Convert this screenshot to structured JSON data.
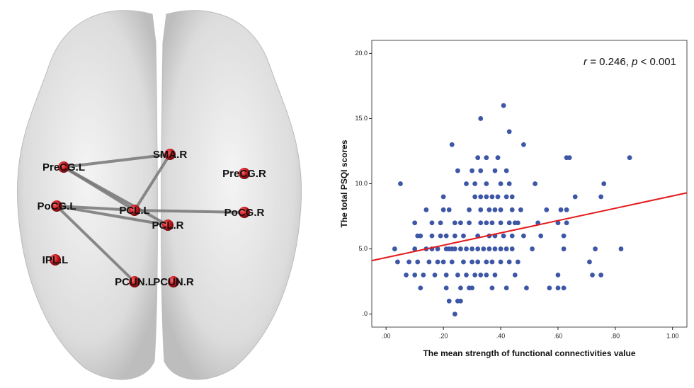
{
  "brain": {
    "nodes": [
      "PreCG.L",
      "SMA.R",
      "PreCG.R",
      "PoCG.L",
      "PCL.L",
      "PoCG.R",
      "PCL.R",
      "IPL.L",
      "PCUN.L",
      "PCUN.R"
    ]
  },
  "chart_data": {
    "type": "scatter",
    "annotation": [
      "r",
      " = 0.246, ",
      "p",
      " < 0.001"
    ],
    "x_label": "The mean strength of functional connectivities value",
    "y_label": "The total PSQI scores",
    "color": "#3d57a6",
    "xlim": [
      -0.05,
      1.05
    ],
    "ylim": [
      -1,
      21
    ],
    "xticks": [
      {
        "value": 0,
        "label": ".00"
      },
      {
        "value": 0.2,
        "label": ".20"
      },
      {
        "value": 0.4,
        "label": ".40"
      },
      {
        "value": 0.6,
        "label": ".60"
      },
      {
        "value": 0.8,
        "label": ".80"
      },
      {
        "value": 1,
        "label": "1.00"
      }
    ],
    "yticks": [
      {
        "value": 0,
        "label": ".0"
      },
      {
        "value": 5,
        "label": "5.0"
      },
      {
        "value": 10,
        "label": "10.0"
      },
      {
        "value": 15,
        "label": "15.0"
      },
      {
        "value": 20,
        "label": "20.0"
      }
    ],
    "fit_line": {
      "x": [
        -0.05,
        1.05
      ],
      "y": [
        4.1,
        9.3
      ],
      "color": "#e41a1c"
    },
    "x": [
      0.24,
      0.22,
      0.25,
      0.26,
      0.12,
      0.21,
      0.26,
      0.29,
      0.3,
      0.37,
      0.42,
      0.49,
      0.57,
      0.6,
      0.62,
      0.07,
      0.1,
      0.13,
      0.17,
      0.21,
      0.25,
      0.28,
      0.31,
      0.33,
      0.35,
      0.38,
      0.45,
      0.6,
      0.72,
      0.75,
      0.04,
      0.08,
      0.11,
      0.15,
      0.18,
      0.2,
      0.23,
      0.27,
      0.3,
      0.32,
      0.35,
      0.37,
      0.4,
      0.43,
      0.46,
      0.71,
      0.03,
      0.1,
      0.14,
      0.16,
      0.18,
      0.21,
      0.22,
      0.23,
      0.24,
      0.26,
      0.28,
      0.3,
      0.32,
      0.34,
      0.36,
      0.38,
      0.4,
      0.42,
      0.44,
      0.51,
      0.62,
      0.73,
      0.82,
      0.11,
      0.12,
      0.16,
      0.19,
      0.21,
      0.24,
      0.27,
      0.32,
      0.36,
      0.38,
      0.41,
      0.44,
      0.48,
      0.54,
      0.62,
      0.1,
      0.16,
      0.19,
      0.24,
      0.26,
      0.29,
      0.33,
      0.35,
      0.37,
      0.4,
      0.43,
      0.45,
      0.46,
      0.53,
      0.6,
      0.63,
      0.14,
      0.2,
      0.22,
      0.29,
      0.33,
      0.36,
      0.38,
      0.4,
      0.44,
      0.47,
      0.56,
      0.61,
      0.63,
      0.2,
      0.31,
      0.33,
      0.35,
      0.37,
      0.39,
      0.42,
      0.44,
      0.66,
      0.75,
      0.05,
      0.28,
      0.31,
      0.35,
      0.4,
      0.43,
      0.52,
      0.76,
      0.25,
      0.3,
      0.33,
      0.38,
      0.42,
      0.32,
      0.35,
      0.39,
      0.63,
      0.64,
      0.85,
      0.23,
      0.48,
      0.43,
      0.33,
      0.41
    ],
    "values": [
      0,
      1,
      1,
      1,
      2,
      2,
      2,
      2,
      2,
      2,
      2,
      2,
      2,
      2,
      2,
      3,
      3,
      3,
      3,
      3,
      3,
      3,
      3,
      3,
      3,
      3,
      3,
      3,
      3,
      3,
      4,
      4,
      4,
      4,
      4,
      4,
      4,
      4,
      4,
      4,
      4,
      4,
      4,
      4,
      4,
      4,
      5,
      5,
      5,
      5,
      5,
      5,
      5,
      5,
      5,
      5,
      5,
      5,
      5,
      5,
      5,
      5,
      5,
      5,
      5,
      5,
      5,
      5,
      5,
      6,
      6,
      6,
      6,
      6,
      6,
      6,
      6,
      6,
      6,
      6,
      6,
      6,
      6,
      6,
      7,
      7,
      7,
      7,
      7,
      7,
      7,
      7,
      7,
      7,
      7,
      7,
      7,
      7,
      7,
      7,
      8,
      8,
      8,
      8,
      8,
      8,
      8,
      8,
      8,
      8,
      8,
      8,
      8,
      9,
      9,
      9,
      9,
      9,
      9,
      9,
      9,
      9,
      9,
      10,
      10,
      10,
      10,
      10,
      10,
      10,
      10,
      11,
      11,
      11,
      11,
      11,
      12,
      12,
      12,
      12,
      12,
      12,
      13,
      13,
      14,
      15,
      16
    ]
  }
}
